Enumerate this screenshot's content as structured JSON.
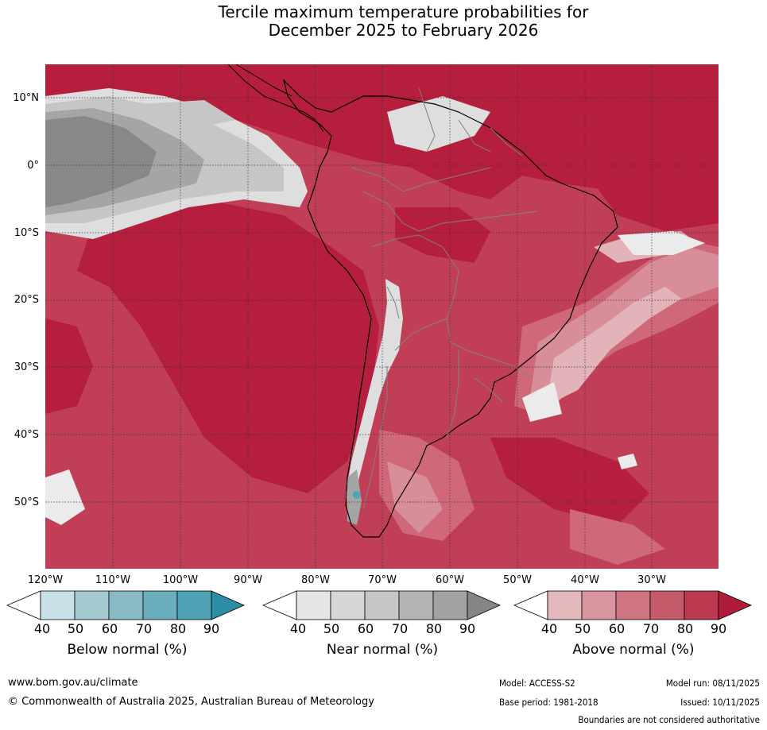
{
  "title": {
    "line1": "Tercile maximum temperature probabilities for",
    "line2": "December 2025 to February 2026"
  },
  "map": {
    "lat_labels": [
      "10°N",
      "0°",
      "10°S",
      "20°S",
      "30°S",
      "40°S",
      "50°S"
    ],
    "lon_labels": [
      "120°W",
      "110°W",
      "100°W",
      "90°W",
      "80°W",
      "70°W",
      "60°W",
      "50°W",
      "40°W",
      "30°W"
    ],
    "colors": {
      "ocean_base": "#c03f57",
      "above_90": "#b51e3c",
      "above_70": "#cf6878",
      "above_60": "#d88e99",
      "above_50": "#e2b3b9",
      "near_90": "#888888",
      "near_80": "#a5a5a5",
      "near_70": "#c6c6c6",
      "near_50": "#dedede",
      "below_80": "#4fa5b5",
      "coast": "#000000",
      "border": "#808080",
      "grid": "#333333"
    }
  },
  "colorbars": [
    {
      "title": "Below normal (%)",
      "ticks": [
        "40",
        "50",
        "60",
        "70",
        "80",
        "90"
      ],
      "colors": [
        "#ffffff",
        "#c8e1e8",
        "#a5c9d1",
        "#88b9c5",
        "#6aaebd",
        "#4fa3b4",
        "#2b8ea5"
      ]
    },
    {
      "title": "Near normal (%)",
      "ticks": [
        "40",
        "50",
        "60",
        "70",
        "80",
        "90"
      ],
      "colors": [
        "#ffffff",
        "#e6e6e6",
        "#d6d6d6",
        "#c6c6c6",
        "#b4b4b4",
        "#a2a2a2",
        "#858585"
      ]
    },
    {
      "title": "Above normal (%)",
      "ticks": [
        "40",
        "50",
        "60",
        "70",
        "80",
        "90"
      ],
      "colors": [
        "#ffffff",
        "#e2b8bd",
        "#d9959f",
        "#cf7581",
        "#c55b69",
        "#bb3a4f",
        "#af1b3a"
      ]
    }
  ],
  "footer": {
    "url": "www.bom.gov.au/climate",
    "copyright": "© Commonwealth of Australia 2025, Australian Bureau of Meteorology",
    "model": "Model: ACCESS-S2",
    "base_period": "Base period: 1981-2018",
    "model_run": "Model run: 08/11/2025",
    "issued": "Issued: 10/11/2025",
    "disclaimer": "Boundaries are not considered authoritative"
  }
}
